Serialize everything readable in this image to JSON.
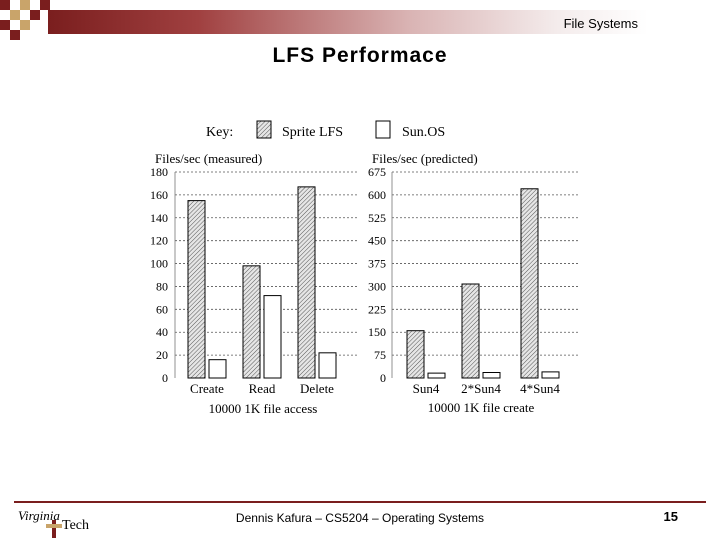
{
  "header": {
    "section": "File Systems"
  },
  "slide": {
    "title": "LFS Performace"
  },
  "legend": {
    "key_label": "Key:",
    "items": [
      "Sprite LFS",
      "Sun.OS"
    ]
  },
  "footer": {
    "text": "Dennis Kafura – CS5204 – Operating Systems",
    "page": "15",
    "logo_top": "Virginia",
    "logo_bottom": "Tech"
  },
  "colors": {
    "accent": "#7a1e1e",
    "bar_sprite": "#d0d0d0",
    "bar_sunos": "#ffffff"
  },
  "chart_data": [
    {
      "type": "bar",
      "ylabel": "Files/sec (measured)",
      "xlabel": "10000 1K file access",
      "categories": [
        "Create",
        "Read",
        "Delete"
      ],
      "series": [
        {
          "name": "Sprite LFS",
          "values": [
            155,
            98,
            167
          ]
        },
        {
          "name": "Sun.OS",
          "values": [
            16,
            72,
            22
          ]
        }
      ],
      "ylim": [
        0,
        180
      ],
      "yticks": [
        0,
        20,
        40,
        60,
        80,
        100,
        120,
        140,
        160,
        180
      ],
      "grid": true
    },
    {
      "type": "bar",
      "ylabel": "Files/sec (predicted)",
      "xlabel": "10000 1K file create",
      "categories": [
        "Sun4",
        "2*Sun4",
        "4*Sun4"
      ],
      "series": [
        {
          "name": "Sprite LFS",
          "values": [
            155,
            308,
            620
          ]
        },
        {
          "name": "Sun.OS",
          "values": [
            16,
            18,
            20
          ]
        }
      ],
      "ylim": [
        0,
        675
      ],
      "yticks": [
        0,
        75,
        150,
        225,
        300,
        375,
        450,
        525,
        600,
        675
      ],
      "grid": true
    }
  ]
}
